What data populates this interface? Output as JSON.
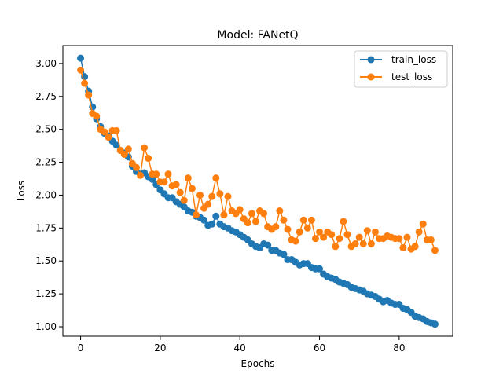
{
  "chart_data": {
    "type": "line",
    "title": "Model: FANetQ",
    "xlabel": "Epochs",
    "ylabel": "Loss",
    "xlim": [
      -4.45,
      93.45
    ],
    "ylim": [
      0.9285,
      3.1365
    ],
    "xticks": [
      0,
      20,
      40,
      60,
      80
    ],
    "yticks": [
      1.0,
      1.25,
      1.5,
      1.75,
      2.0,
      2.25,
      2.5,
      2.75,
      3.0
    ],
    "ytick_labels": [
      "1.00",
      "1.25",
      "1.50",
      "1.75",
      "2.00",
      "2.25",
      "2.50",
      "2.75",
      "3.00"
    ],
    "xtick_labels": [
      "0",
      "20",
      "40",
      "60",
      "80"
    ],
    "grid": false,
    "legend_position": "top-right",
    "series": [
      {
        "name": "train_loss",
        "color": "#1f77b4",
        "x": [
          0,
          1,
          2,
          3,
          4,
          5,
          6,
          7,
          8,
          9,
          10,
          11,
          12,
          13,
          14,
          15,
          16,
          17,
          18,
          19,
          20,
          21,
          22,
          23,
          24,
          25,
          26,
          27,
          28,
          29,
          30,
          31,
          32,
          33,
          34,
          35,
          36,
          37,
          38,
          39,
          40,
          41,
          42,
          43,
          44,
          45,
          46,
          47,
          48,
          49,
          50,
          51,
          52,
          53,
          54,
          55,
          56,
          57,
          58,
          59,
          60,
          61,
          62,
          63,
          64,
          65,
          66,
          67,
          68,
          69,
          70,
          71,
          72,
          73,
          74,
          75,
          76,
          77,
          78,
          79,
          80,
          81,
          82,
          83,
          84,
          85,
          86,
          87,
          88,
          89
        ],
        "values": [
          3.04,
          2.9,
          2.79,
          2.67,
          2.58,
          2.52,
          2.47,
          2.45,
          2.41,
          2.38,
          2.34,
          2.32,
          2.29,
          2.22,
          2.18,
          2.16,
          2.17,
          2.14,
          2.12,
          2.08,
          2.04,
          2.01,
          1.98,
          1.98,
          1.95,
          1.93,
          1.91,
          1.88,
          1.87,
          1.84,
          1.83,
          1.81,
          1.77,
          1.78,
          1.84,
          1.78,
          1.76,
          1.75,
          1.73,
          1.72,
          1.7,
          1.68,
          1.66,
          1.63,
          1.61,
          1.6,
          1.63,
          1.62,
          1.58,
          1.58,
          1.56,
          1.55,
          1.51,
          1.51,
          1.49,
          1.47,
          1.48,
          1.48,
          1.45,
          1.44,
          1.44,
          1.4,
          1.38,
          1.37,
          1.36,
          1.34,
          1.33,
          1.32,
          1.3,
          1.29,
          1.28,
          1.27,
          1.25,
          1.24,
          1.23,
          1.21,
          1.19,
          1.2,
          1.18,
          1.17,
          1.17,
          1.14,
          1.13,
          1.11,
          1.08,
          1.07,
          1.06,
          1.04,
          1.03,
          1.02
        ]
      },
      {
        "name": "test_loss",
        "color": "#ff7f0e",
        "x": [
          0,
          1,
          2,
          3,
          4,
          5,
          6,
          7,
          8,
          9,
          10,
          11,
          12,
          13,
          14,
          15,
          16,
          17,
          18,
          19,
          20,
          21,
          22,
          23,
          24,
          25,
          26,
          27,
          28,
          29,
          30,
          31,
          32,
          33,
          34,
          35,
          36,
          37,
          38,
          39,
          40,
          41,
          42,
          43,
          44,
          45,
          46,
          47,
          48,
          49,
          50,
          51,
          52,
          53,
          54,
          55,
          56,
          57,
          58,
          59,
          60,
          61,
          62,
          63,
          64,
          65,
          66,
          67,
          68,
          69,
          70,
          71,
          72,
          73,
          74,
          75,
          76,
          77,
          78,
          79,
          80,
          81,
          82,
          83,
          84,
          85,
          86,
          87,
          88,
          89
        ],
        "values": [
          2.95,
          2.85,
          2.76,
          2.62,
          2.6,
          2.5,
          2.48,
          2.44,
          2.49,
          2.49,
          2.34,
          2.31,
          2.35,
          2.24,
          2.21,
          2.15,
          2.36,
          2.28,
          2.16,
          2.16,
          2.1,
          2.1,
          2.16,
          2.07,
          2.08,
          2.02,
          1.96,
          2.13,
          2.05,
          1.85,
          2.0,
          1.9,
          1.93,
          1.99,
          2.13,
          2.01,
          1.85,
          1.99,
          1.88,
          1.86,
          1.89,
          1.82,
          1.79,
          1.86,
          1.8,
          1.88,
          1.86,
          1.76,
          1.74,
          1.76,
          1.88,
          1.81,
          1.74,
          1.66,
          1.65,
          1.72,
          1.81,
          1.75,
          1.81,
          1.67,
          1.72,
          1.68,
          1.72,
          1.7,
          1.61,
          1.67,
          1.8,
          1.7,
          1.61,
          1.63,
          1.68,
          1.63,
          1.73,
          1.63,
          1.72,
          1.67,
          1.67,
          1.69,
          1.68,
          1.67,
          1.67,
          1.6,
          1.68,
          1.59,
          1.61,
          1.72,
          1.78,
          1.66,
          1.66,
          1.58
        ]
      }
    ]
  }
}
